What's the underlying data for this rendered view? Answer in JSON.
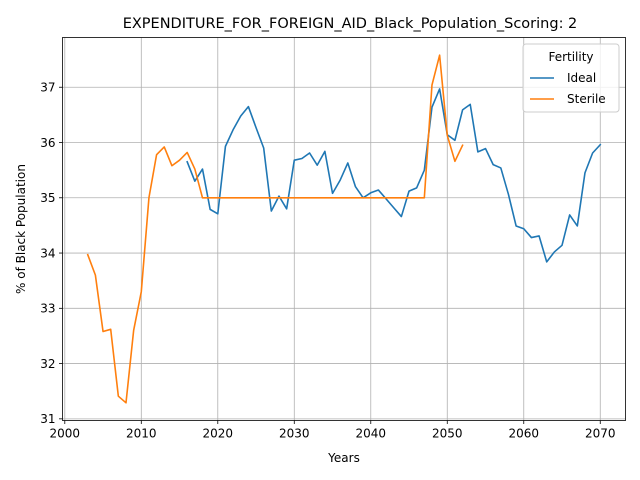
{
  "chart_data": {
    "type": "line",
    "title": "EXPENDITURE_FOR_FOREIGN_AID_Black_Population_Scoring: 2",
    "xlabel": "Years",
    "ylabel": "% of Black Population",
    "xlim": [
      1999.7,
      2073.3
    ],
    "ylim": [
      30.97,
      37.9
    ],
    "xticks": [
      2000,
      2010,
      2020,
      2030,
      2040,
      2050,
      2060,
      2070
    ],
    "yticks": [
      31,
      32,
      33,
      34,
      35,
      36,
      37
    ],
    "grid": true,
    "legend": {
      "title": "Fertility",
      "placement": "top-right"
    },
    "series": [
      {
        "name": "Ideal",
        "color": "#1f77b4",
        "x": [
          2016,
          2017,
          2018,
          2019,
          2020,
          2021,
          2022,
          2023,
          2024,
          2025,
          2026,
          2027,
          2028,
          2029,
          2030,
          2031,
          2032,
          2033,
          2034,
          2035,
          2036,
          2037,
          2038,
          2039,
          2040,
          2041,
          2042,
          2043,
          2044,
          2045,
          2046,
          2047,
          2048,
          2049,
          2050,
          2051,
          2052,
          2053,
          2054,
          2055,
          2056,
          2057,
          2058,
          2059,
          2060,
          2061,
          2062,
          2063,
          2064,
          2065,
          2066,
          2067,
          2068,
          2069,
          2070
        ],
        "y": [
          35.65,
          35.3,
          35.52,
          34.79,
          34.71,
          35.93,
          36.23,
          36.48,
          36.65,
          36.27,
          35.9,
          34.76,
          35.03,
          34.8,
          35.68,
          35.71,
          35.81,
          35.59,
          35.84,
          35.08,
          35.32,
          35.63,
          35.2,
          35.0,
          35.09,
          35.14,
          34.98,
          34.82,
          34.66,
          35.12,
          35.18,
          35.5,
          36.64,
          36.97,
          36.14,
          36.04,
          36.59,
          36.69,
          35.83,
          35.89,
          35.6,
          35.54,
          35.06,
          34.49,
          34.44,
          34.28,
          34.31,
          33.84,
          34.02,
          34.14,
          34.69,
          34.49,
          35.45,
          35.81,
          35.96
        ]
      },
      {
        "name": "Sterile",
        "color": "#ff7f0e",
        "x": [
          2003,
          2004,
          2005,
          2006,
          2007,
          2008,
          2009,
          2010,
          2011,
          2012,
          2013,
          2014,
          2015,
          2016,
          2017,
          2018,
          2019,
          2020,
          2021,
          2022,
          2023,
          2024,
          2025,
          2026,
          2027,
          2028,
          2029,
          2030,
          2031,
          2032,
          2033,
          2034,
          2035,
          2036,
          2037,
          2038,
          2039,
          2040,
          2041,
          2042,
          2043,
          2044,
          2045,
          2046,
          2047,
          2048,
          2049,
          2050,
          2051,
          2052
        ],
        "y": [
          33.97,
          33.6,
          32.58,
          32.62,
          31.41,
          31.29,
          32.6,
          33.3,
          35.0,
          35.78,
          35.92,
          35.58,
          35.68,
          35.82,
          35.52,
          35.0,
          35.0,
          35.0,
          35.0,
          35.0,
          35.0,
          35.0,
          35.0,
          35.0,
          35.0,
          35.0,
          35.0,
          35.0,
          35.0,
          35.0,
          35.0,
          35.0,
          35.0,
          35.0,
          35.0,
          35.0,
          35.0,
          35.0,
          35.0,
          35.0,
          35.0,
          35.0,
          35.0,
          35.0,
          35.0,
          37.04,
          37.58,
          36.13,
          35.66,
          35.95
        ]
      }
    ]
  }
}
